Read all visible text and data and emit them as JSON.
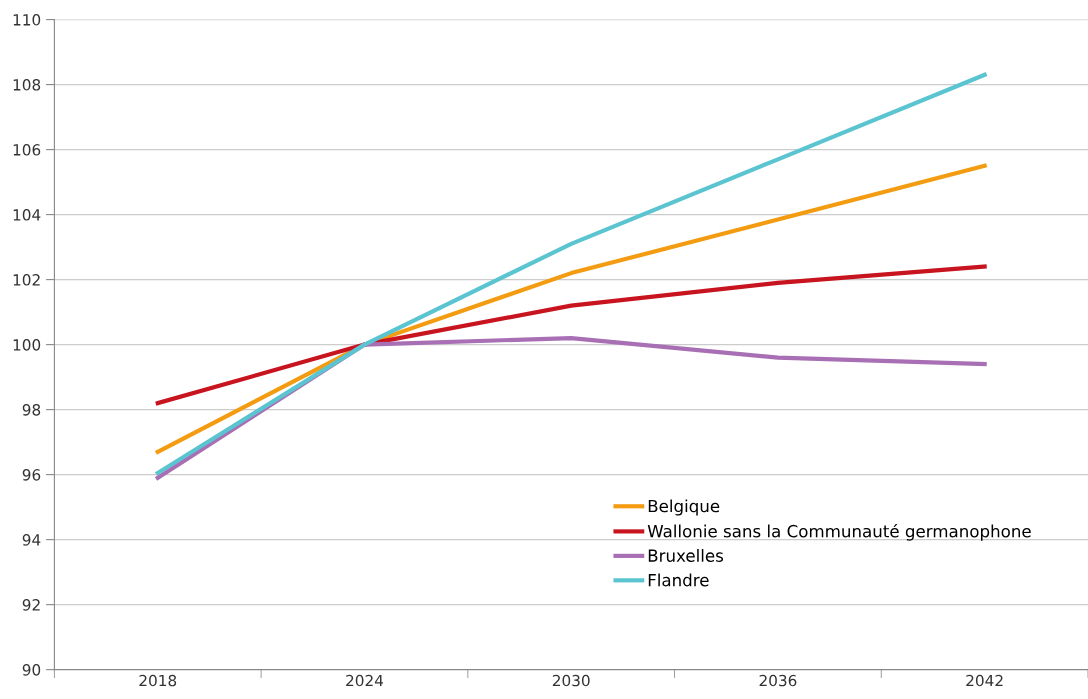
{
  "chart_data": {
    "type": "line",
    "categories": [
      "2018",
      "2024",
      "2030",
      "2036",
      "2042"
    ],
    "series": [
      {
        "name": "Belgique",
        "color": "#f39c12",
        "values": [
          96.7,
          100,
          102.2,
          103.85,
          105.5
        ]
      },
      {
        "name": "Wallonie sans la Communauté germanophone",
        "color": "#c8141e",
        "values": [
          98.2,
          100,
          101.2,
          101.9,
          102.4
        ]
      },
      {
        "name": "Bruxelles",
        "color": "#a86fb4",
        "values": [
          95.9,
          100,
          100.2,
          99.6,
          99.4
        ]
      },
      {
        "name": "Flandre",
        "color": "#5bc4d1",
        "values": [
          96.05,
          100,
          103.1,
          105.7,
          108.3
        ]
      }
    ],
    "ylim": [
      90,
      110
    ],
    "yticks": [
      90,
      92,
      94,
      96,
      98,
      100,
      102,
      104,
      106,
      108,
      110
    ],
    "grid": "y",
    "legend": "bottom right",
    "marker": "none",
    "line_style": "solid"
  }
}
